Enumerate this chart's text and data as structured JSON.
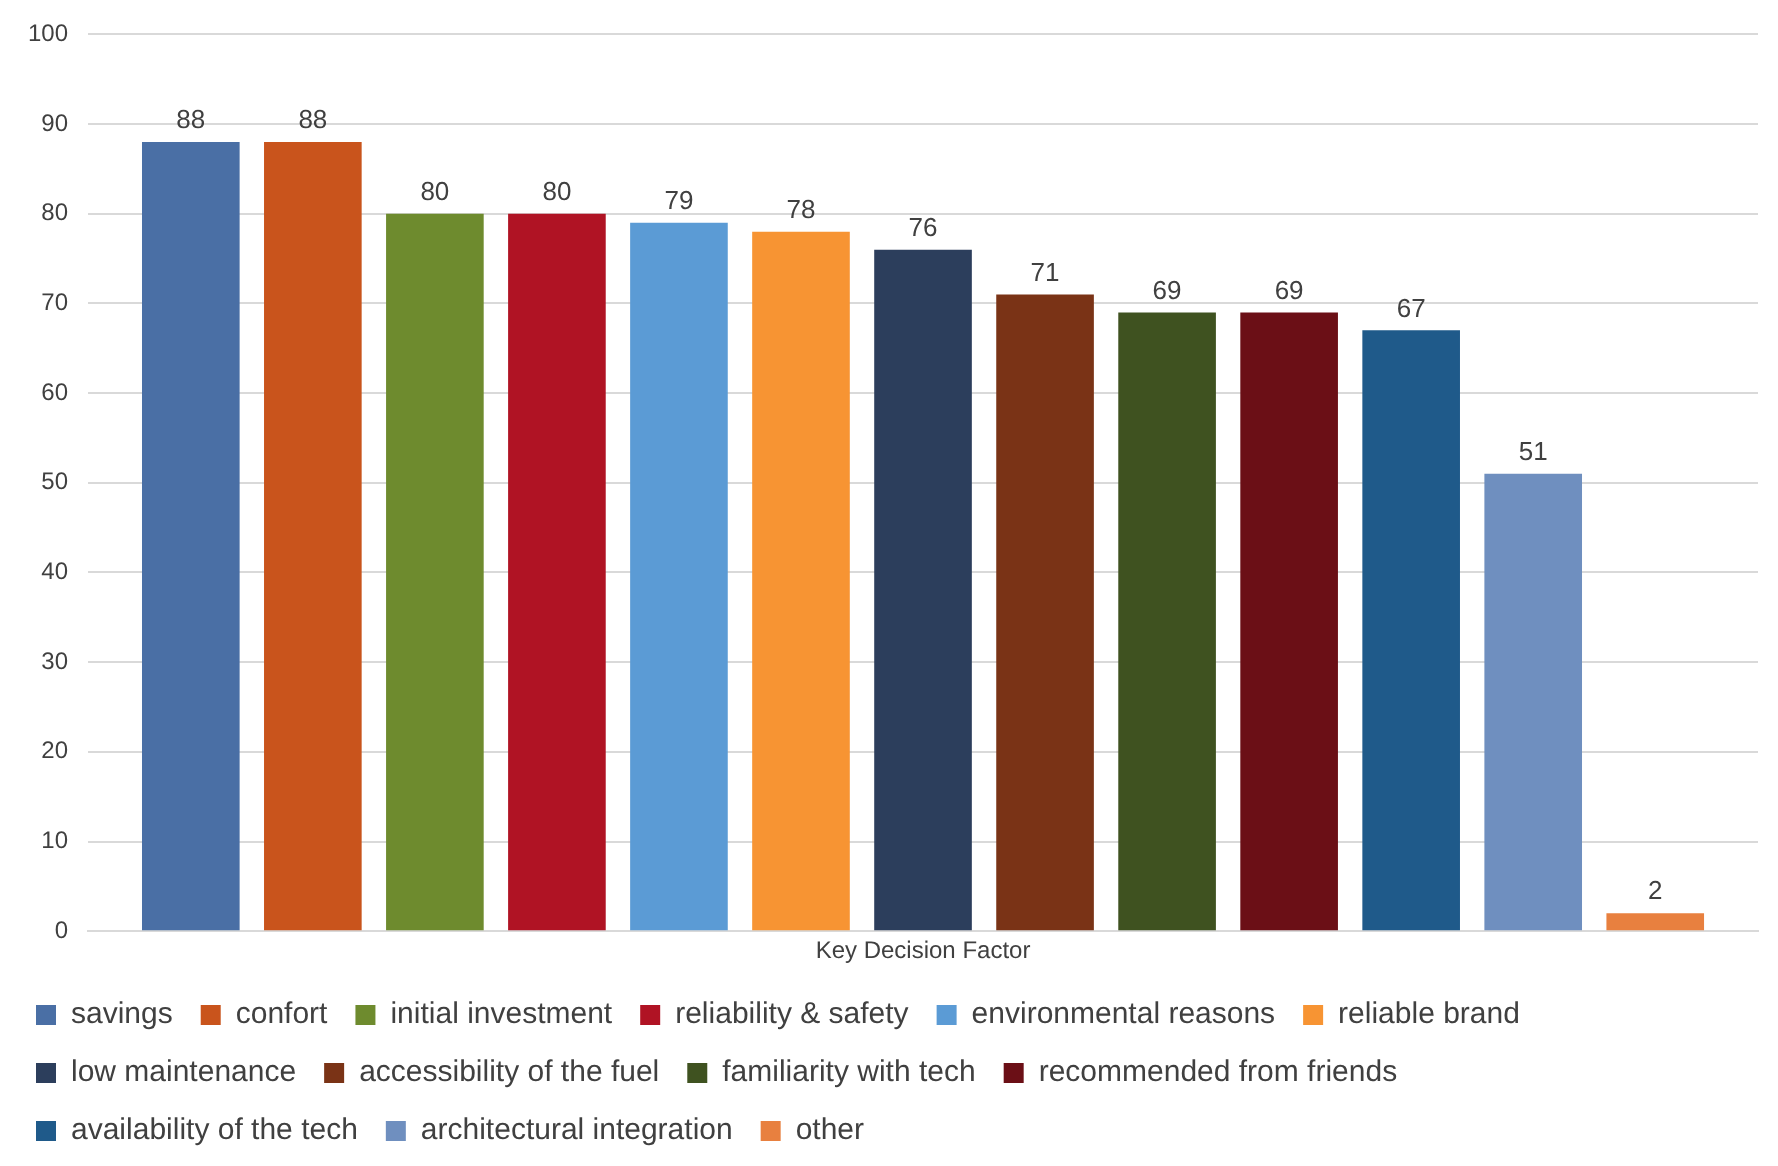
{
  "chart_data": {
    "type": "bar",
    "categories": [
      "Key Decision Factor"
    ],
    "series": [
      {
        "name": "savings",
        "color": "#4a6fa5",
        "values": [
          88
        ]
      },
      {
        "name": "confort",
        "color": "#c9541c",
        "values": [
          88
        ]
      },
      {
        "name": "initial investment",
        "color": "#6e8b2e",
        "values": [
          80
        ]
      },
      {
        "name": "reliability & safety",
        "color": "#b01324",
        "values": [
          80
        ]
      },
      {
        "name": "environmental reasons",
        "color": "#5b9bd5",
        "values": [
          79
        ]
      },
      {
        "name": "reliable brand",
        "color": "#f79433",
        "values": [
          78
        ]
      },
      {
        "name": "low maintenance",
        "color": "#2c3e5c",
        "values": [
          76
        ]
      },
      {
        "name": "accessibility of the fuel",
        "color": "#7a3316",
        "values": [
          71
        ]
      },
      {
        "name": "familiarity with tech",
        "color": "#3f5220",
        "values": [
          69
        ]
      },
      {
        "name": "recommended from friends",
        "color": "#6b0f16",
        "values": [
          69
        ]
      },
      {
        "name": "availability of the tech",
        "color": "#1f5a8a",
        "values": [
          67
        ]
      },
      {
        "name": "architectural integration",
        "color": "#6f8fbf",
        "values": [
          51
        ]
      },
      {
        "name": "other",
        "color": "#e8803f",
        "values": [
          2
        ]
      }
    ],
    "ylim": [
      0,
      100
    ],
    "yticks": [
      0,
      10,
      20,
      30,
      40,
      50,
      60,
      70,
      80,
      90,
      100
    ],
    "grid": "y",
    "legend": "bottom",
    "data_labels": true
  }
}
